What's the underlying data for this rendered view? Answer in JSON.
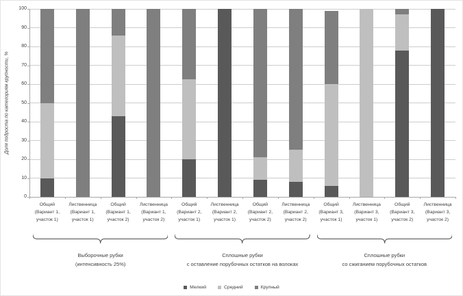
{
  "chart_data": {
    "type": "bar",
    "stacked": true,
    "percent": true,
    "grid": true,
    "legend_position": "bottom",
    "ylabel": "Доля подроста по категориям крупности, %",
    "ylim": [
      0,
      100
    ],
    "ytick_step": 10,
    "yticks": [
      0,
      10,
      20,
      30,
      40,
      50,
      60,
      70,
      80,
      90,
      100
    ],
    "categories": [
      [
        "Общий",
        "(Вариант 1,",
        "участок 1)"
      ],
      [
        "Лиственница",
        "(Вариант 1,",
        "участок 1)"
      ],
      [
        "Общий",
        "(Вариант 1,",
        "участок 2)"
      ],
      [
        "Лиственница",
        "(Вариант 1,",
        "участок 2)"
      ],
      [
        "Общий",
        "(Вариант 2,",
        "участок 1)"
      ],
      [
        "Лиственница",
        "(Вариант 2,",
        "участок 1)"
      ],
      [
        "Общий",
        "(Вариант 2,",
        "участок 2)"
      ],
      [
        "Лиственница",
        "(Вариант 2,",
        "участок 2)"
      ],
      [
        "Общий",
        "(Вариант 3,",
        "участок 1)"
      ],
      [
        "Лиственница",
        "(Вариант 3,",
        "участок 1)"
      ],
      [
        "Общий",
        "(Вариант 3,",
        "участок 2)"
      ],
      [
        "Лиственница",
        "(Вариант 3,",
        "участок 2)"
      ]
    ],
    "series": [
      {
        "name": "Мелкий",
        "color": "#595959",
        "values": [
          10,
          0,
          43,
          0,
          20,
          100,
          9,
          8,
          6,
          0,
          78,
          100
        ]
      },
      {
        "name": "Средний",
        "color": "#bfbfbf",
        "values": [
          40,
          0,
          43,
          0,
          42.5,
          0,
          12,
          17,
          54,
          100,
          19,
          0
        ]
      },
      {
        "name": "Крупный",
        "color": "#7f7f7f",
        "values": [
          50,
          100,
          14,
          100,
          37.5,
          0,
          79,
          75,
          39,
          0,
          3,
          0
        ]
      }
    ],
    "groups": [
      {
        "first_bar": 0,
        "last_bar": 3,
        "label_lines": [
          "Выборочные рубки",
          "(интенсивность 25%)"
        ]
      },
      {
        "first_bar": 4,
        "last_bar": 7,
        "label_lines": [
          "Сплошные рубки",
          "с оставление порубочных остатков на волоках"
        ]
      },
      {
        "first_bar": 8,
        "last_bar": 11,
        "label_lines": [
          "Сплошные рубки",
          "со сжиганием  порубочных остатков"
        ]
      }
    ],
    "legend": [
      "Мелкий",
      "Средний",
      "Крупный"
    ]
  },
  "colors": {
    "small": "#595959",
    "medium": "#bfbfbf",
    "large": "#7f7f7f",
    "gridline": "#cccccc",
    "axis": "#a6a6a6",
    "text": "#3f3f3f",
    "brace": "#4d4d4d"
  }
}
